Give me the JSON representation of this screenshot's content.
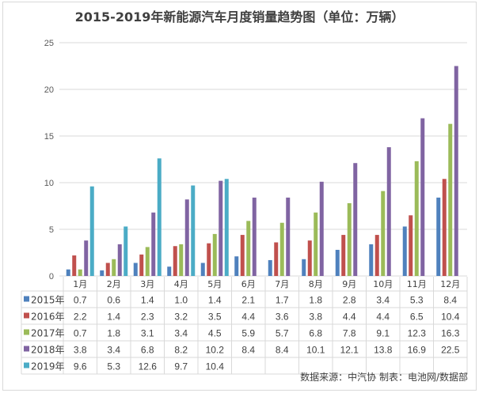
{
  "chart_data": {
    "type": "bar",
    "title": "2015-2019年新能源汽车月度销量趋势图（单位：万辆）",
    "categories": [
      "1月",
      "2月",
      "3月",
      "4月",
      "5月",
      "6月",
      "7月",
      "8月",
      "9月",
      "10月",
      "11月",
      "12月"
    ],
    "ylim": [
      0,
      25
    ],
    "yticks": [
      0,
      5,
      10,
      15,
      20,
      25
    ],
    "grid": true,
    "legend": "data-table",
    "series": [
      {
        "name": "2015年",
        "color": "#4F81BD",
        "values": [
          0.7,
          0.6,
          1.4,
          1.0,
          1.4,
          2.1,
          1.7,
          1.8,
          2.8,
          3.4,
          5.3,
          8.4
        ]
      },
      {
        "name": "2016年",
        "color": "#C0504D",
        "values": [
          2.2,
          1.4,
          2.3,
          3.2,
          3.5,
          4.4,
          3.6,
          3.8,
          4.4,
          4.4,
          6.5,
          10.4
        ]
      },
      {
        "name": "2017年",
        "color": "#9BBB59",
        "values": [
          0.7,
          1.8,
          3.1,
          3.4,
          4.5,
          5.9,
          5.7,
          6.8,
          7.8,
          9.1,
          12.3,
          16.3
        ]
      },
      {
        "name": "2018年",
        "color": "#8064A2",
        "values": [
          3.8,
          3.4,
          6.8,
          8.2,
          10.2,
          8.4,
          8.4,
          10.1,
          12.1,
          13.8,
          16.9,
          22.5
        ]
      },
      {
        "name": "2019年",
        "color": "#4BACC6",
        "values": [
          9.6,
          5.3,
          12.6,
          9.7,
          10.4,
          null,
          null,
          null,
          null,
          null,
          null,
          null
        ]
      }
    ],
    "source": "数据来源：中汽协  制表：电池网/数据部"
  }
}
